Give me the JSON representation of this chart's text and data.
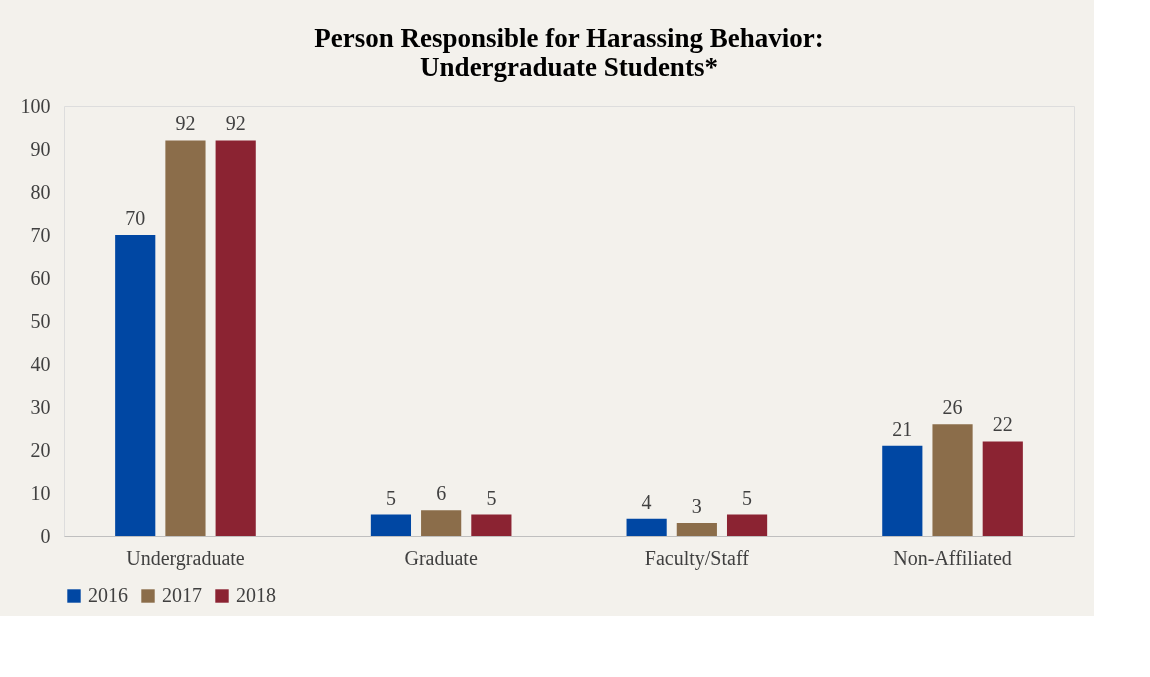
{
  "chart_data": {
    "type": "bar",
    "title": [
      "Person Responsible for Harassing Behavior:",
      "Undergraduate Students*"
    ],
    "categories": [
      "Undergraduate",
      "Graduate",
      "Faculty/Staff",
      "Non-Affiliated"
    ],
    "series": [
      {
        "name": "2016",
        "color": "#0047a3",
        "values": [
          70,
          5,
          4,
          21
        ]
      },
      {
        "name": "2017",
        "color": "#8b6d4a",
        "values": [
          92,
          6,
          3,
          26
        ]
      },
      {
        "name": "2018",
        "color": "#8b2332",
        "values": [
          92,
          5,
          5,
          22
        ]
      }
    ],
    "ylim": [
      0,
      100
    ],
    "yticks": [
      0,
      10,
      20,
      30,
      40,
      50,
      60,
      70,
      80,
      90,
      100
    ],
    "grid": false,
    "legend": "bottom",
    "data_labels": true
  }
}
